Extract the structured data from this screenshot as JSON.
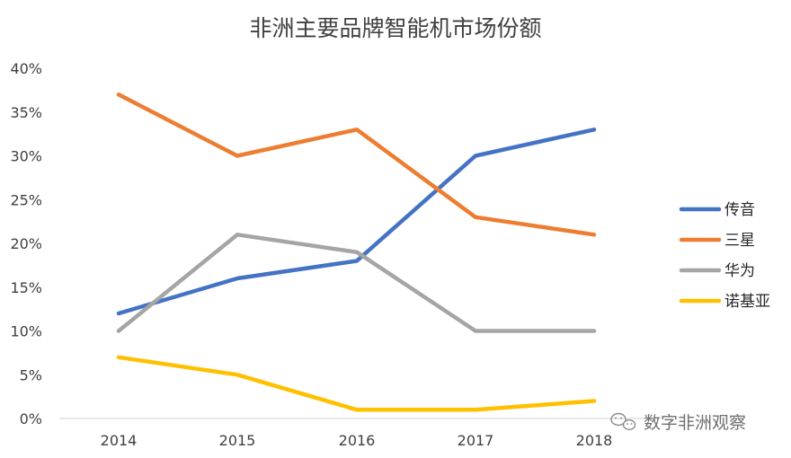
{
  "chart_data": {
    "type": "line",
    "title": "非洲主要品牌智能机市场份额",
    "categories": [
      "2014",
      "2015",
      "2016",
      "2017",
      "2018"
    ],
    "y_tick_labels": [
      "0%",
      "5%",
      "10%",
      "15%",
      "20%",
      "25%",
      "30%",
      "35%",
      "40%"
    ],
    "ylim": [
      0,
      40
    ],
    "y_unit": "%",
    "grid": false,
    "legend_position": "right",
    "series": [
      {
        "name": "传音",
        "color": "#4472C4",
        "values": [
          12,
          16,
          18,
          30,
          33
        ]
      },
      {
        "name": "三星",
        "color": "#ED7D31",
        "values": [
          37,
          30,
          33,
          23,
          21
        ]
      },
      {
        "name": "华为",
        "color": "#A5A5A5",
        "values": [
          10,
          21,
          19,
          10,
          10
        ]
      },
      {
        "name": "诺基亚",
        "color": "#FFC000",
        "values": [
          7,
          5,
          1,
          1,
          2
        ]
      }
    ]
  },
  "watermark": {
    "text": "数字非洲观察",
    "icon": "wechat-icon"
  }
}
